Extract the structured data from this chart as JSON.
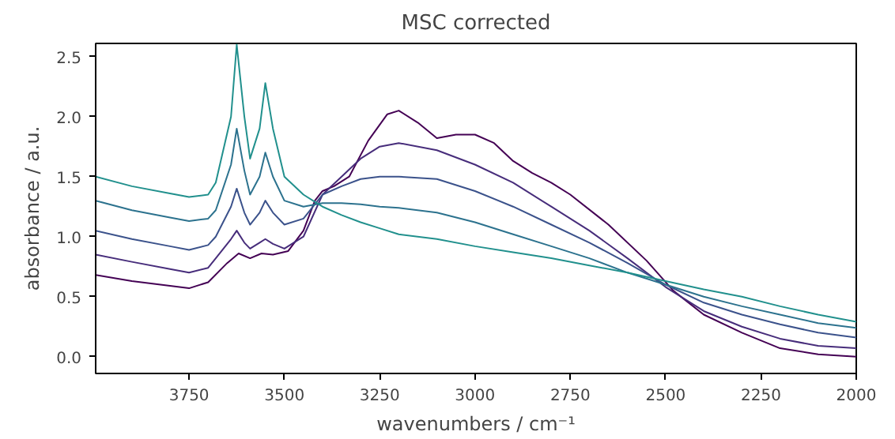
{
  "chart_data": {
    "type": "line",
    "title": "MSC corrected",
    "xlabel": "wavenumbers / cm⁻¹",
    "ylabel": "absorbance / a.u.",
    "xlim": [
      3995,
      2000
    ],
    "ylim": [
      -0.14,
      2.61
    ],
    "xticks": [
      3750,
      3500,
      3250,
      3000,
      2750,
      2500,
      2250,
      2000
    ],
    "yticks": [
      {
        "value": 0,
        "label": "0.0"
      },
      {
        "value": 0.5,
        "label": "0.5"
      },
      {
        "value": 1,
        "label": "1.0"
      },
      {
        "value": 1.5,
        "label": "1.5"
      },
      {
        "value": 2,
        "label": "2.0"
      },
      {
        "value": 2.5,
        "label": "2.5"
      }
    ],
    "line_style": "solid",
    "series": [
      {
        "color": "#440154",
        "x": [
          3995,
          3900,
          3800,
          3750,
          3700,
          3650,
          3620,
          3590,
          3560,
          3530,
          3490,
          3450,
          3420,
          3400,
          3370,
          3330,
          3280,
          3230,
          3200,
          3150,
          3100,
          3050,
          3000,
          2950,
          2900,
          2850,
          2800,
          2750,
          2650,
          2550,
          2480,
          2400,
          2300,
          2200,
          2100,
          2000
        ],
        "values": [
          0.68,
          0.63,
          0.59,
          0.57,
          0.62,
          0.78,
          0.86,
          0.82,
          0.86,
          0.85,
          0.88,
          1.05,
          1.3,
          1.38,
          1.42,
          1.5,
          1.8,
          2.02,
          2.05,
          1.95,
          1.82,
          1.85,
          1.85,
          1.78,
          1.63,
          1.53,
          1.45,
          1.35,
          1.1,
          0.8,
          0.55,
          0.35,
          0.2,
          0.07,
          0.02,
          0.0
        ]
      },
      {
        "color": "#472d7b",
        "x": [
          3995,
          3900,
          3800,
          3750,
          3700,
          3680,
          3640,
          3625,
          3605,
          3590,
          3565,
          3550,
          3530,
          3500,
          3450,
          3400,
          3350,
          3300,
          3250,
          3200,
          3100,
          3000,
          2900,
          2800,
          2700,
          2600,
          2500,
          2400,
          2300,
          2200,
          2100,
          2000
        ],
        "values": [
          0.85,
          0.79,
          0.73,
          0.7,
          0.74,
          0.82,
          0.98,
          1.05,
          0.95,
          0.9,
          0.95,
          0.98,
          0.94,
          0.9,
          1.0,
          1.35,
          1.5,
          1.65,
          1.75,
          1.78,
          1.72,
          1.6,
          1.45,
          1.25,
          1.05,
          0.82,
          0.58,
          0.38,
          0.25,
          0.15,
          0.09,
          0.07
        ]
      },
      {
        "color": "#3b528b",
        "x": [
          3995,
          3900,
          3800,
          3750,
          3700,
          3680,
          3640,
          3625,
          3605,
          3590,
          3565,
          3550,
          3530,
          3500,
          3450,
          3400,
          3350,
          3300,
          3250,
          3200,
          3100,
          3000,
          2900,
          2800,
          2700,
          2600,
          2500,
          2400,
          2300,
          2200,
          2100,
          2000
        ],
        "values": [
          1.05,
          0.98,
          0.92,
          0.89,
          0.93,
          1.0,
          1.25,
          1.4,
          1.2,
          1.1,
          1.2,
          1.3,
          1.2,
          1.1,
          1.15,
          1.35,
          1.42,
          1.48,
          1.5,
          1.5,
          1.48,
          1.38,
          1.25,
          1.1,
          0.95,
          0.78,
          0.6,
          0.45,
          0.35,
          0.27,
          0.2,
          0.16
        ]
      },
      {
        "color": "#2c728e",
        "x": [
          3995,
          3900,
          3800,
          3750,
          3700,
          3680,
          3640,
          3625,
          3605,
          3590,
          3565,
          3550,
          3530,
          3500,
          3450,
          3400,
          3350,
          3300,
          3250,
          3200,
          3100,
          3000,
          2900,
          2800,
          2700,
          2600,
          2500,
          2400,
          2300,
          2200,
          2100,
          2000
        ],
        "values": [
          1.3,
          1.22,
          1.16,
          1.13,
          1.15,
          1.22,
          1.6,
          1.9,
          1.55,
          1.35,
          1.5,
          1.7,
          1.5,
          1.3,
          1.25,
          1.28,
          1.28,
          1.27,
          1.25,
          1.24,
          1.2,
          1.12,
          1.02,
          0.92,
          0.82,
          0.7,
          0.6,
          0.5,
          0.42,
          0.35,
          0.28,
          0.24
        ]
      },
      {
        "color": "#21908d",
        "x": [
          3995,
          3900,
          3800,
          3750,
          3700,
          3680,
          3640,
          3625,
          3605,
          3590,
          3565,
          3550,
          3530,
          3500,
          3450,
          3400,
          3350,
          3300,
          3250,
          3200,
          3100,
          3000,
          2900,
          2800,
          2700,
          2600,
          2500,
          2400,
          2300,
          2200,
          2100,
          2000
        ],
        "values": [
          1.5,
          1.42,
          1.36,
          1.33,
          1.35,
          1.45,
          2.0,
          2.6,
          2.0,
          1.65,
          1.9,
          2.28,
          1.9,
          1.5,
          1.35,
          1.25,
          1.18,
          1.12,
          1.07,
          1.02,
          0.98,
          0.92,
          0.87,
          0.82,
          0.76,
          0.7,
          0.63,
          0.56,
          0.5,
          0.42,
          0.35,
          0.29
        ]
      }
    ]
  }
}
